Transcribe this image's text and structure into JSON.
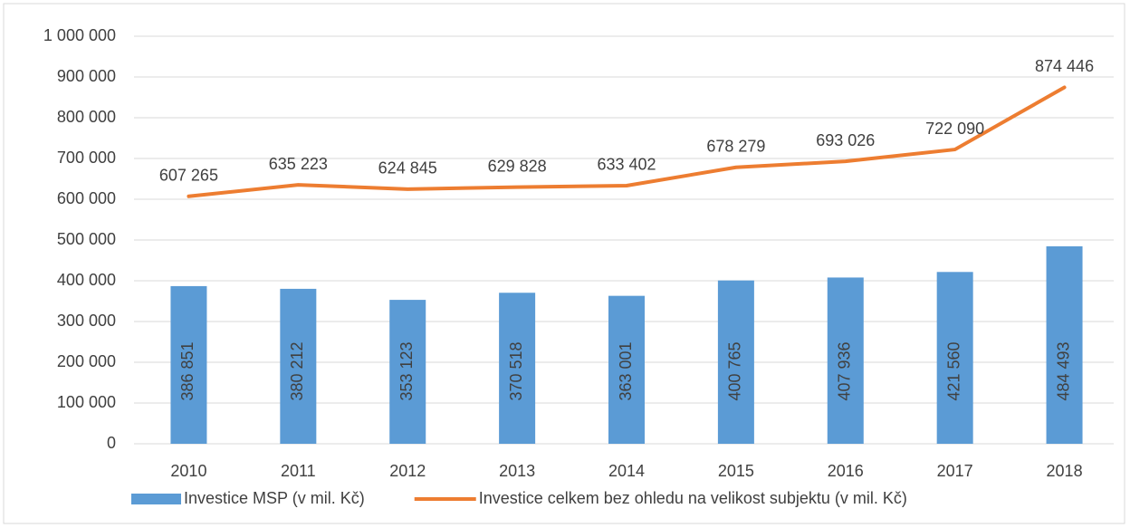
{
  "chart_data": {
    "type": "bar",
    "categories": [
      "2010",
      "2011",
      "2012",
      "2013",
      "2014",
      "2015",
      "2016",
      "2017",
      "2018"
    ],
    "series": [
      {
        "name": "Investice MSP (v mil. Kč)",
        "type": "bar",
        "color": "#5b9bd5",
        "values": [
          386851,
          380212,
          353123,
          370518,
          363001,
          400765,
          407936,
          421560,
          484493
        ],
        "value_labels": [
          "386 851",
          "380 212",
          "353 123",
          "370 518",
          "363 001",
          "400 765",
          "407 936",
          "421 560",
          "484 493"
        ]
      },
      {
        "name": "Investice celkem bez ohledu na velikost subjektu (v mil. Kč)",
        "type": "line",
        "color": "#ed7d31",
        "values": [
          607265,
          635223,
          624845,
          629828,
          633402,
          678279,
          693026,
          722090,
          874446
        ],
        "value_labels": [
          "607 265",
          "635 223",
          "624 845",
          "629 828",
          "633 402",
          "678 279",
          "693 026",
          "722 090",
          "874 446"
        ]
      }
    ],
    "ylim": [
      0,
      1000000
    ],
    "yticks": [
      0,
      {
        "value": 100000,
        "label": "100 000"
      },
      {
        "value": 200000,
        "label": "200 000"
      },
      {
        "value": 300000,
        "label": "300 000"
      },
      {
        "value": 400000,
        "label": "400 000"
      },
      {
        "value": 500000,
        "label": "500 000"
      },
      {
        "value": 600000,
        "label": "600 000"
      },
      {
        "value": 700000,
        "label": "700 000"
      },
      {
        "value": 800000,
        "label": "800 000"
      },
      {
        "value": 900000,
        "label": "900 000"
      },
      {
        "value": 1000000,
        "label": "1 000 000"
      }
    ],
    "grid": true,
    "legend": "bottom"
  }
}
